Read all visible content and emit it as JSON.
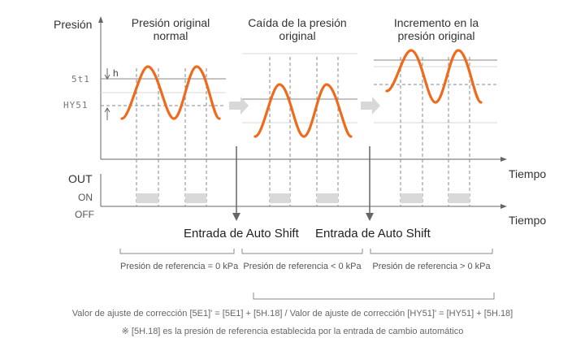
{
  "axes": {
    "y_label": "Presión",
    "x_label": "Tiempo",
    "out_label": "OUT",
    "on_label": "ON",
    "off_label": "OFF",
    "x_label_out": "Tiempo"
  },
  "set_labels": {
    "set": "5t1",
    "hys": "HY51",
    "h": "h"
  },
  "phases": [
    {
      "title": "Presión original normal",
      "ref": "Presión de referencia = 0 kPa"
    },
    {
      "title": "Caída de la presión original",
      "ref": "Presión de referencia < 0 kPa"
    },
    {
      "title": "Incremento en la presión original",
      "ref": "Presión de referencia > 0 kPa"
    }
  ],
  "auto_shift": [
    "Entrada de Auto Shift",
    "Entrada de Auto Shift"
  ],
  "footer": {
    "line1": "Valor de ajuste de corrección [5E1]' = [5E1] + [5H.18] /  Valor de ajuste de corrección [HY51]' = [HY51] + [5H.18]",
    "line2": "※ [5H.18] es la presión de referencia establecida por la entrada de cambio automático"
  },
  "colors": {
    "wave": "#ee6a1c",
    "on_block": "#d9d9d9",
    "arrow": "#d0d0d0",
    "line": "#888888"
  }
}
